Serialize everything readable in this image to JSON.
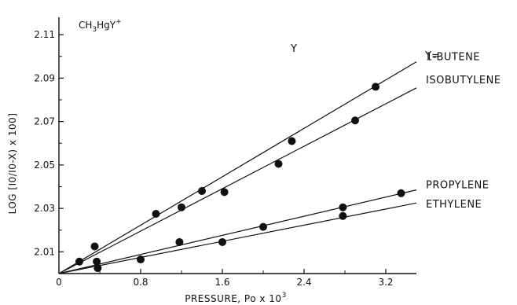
{
  "chart_data": {
    "type": "scatter",
    "title": "",
    "corner_label": "CH3HgY+",
    "corner_label_main": "CH",
    "corner_label_sub": "3",
    "corner_label_mid": "HgY",
    "corner_label_sup": "+",
    "annotation_y": "Y",
    "legend_header": "Y=",
    "xlabel": "PRESSURE, Po x 10",
    "xlabel_exponent": "3",
    "ylabel": "LOG [I0/I0-X) x 100]",
    "xlim": [
      0,
      3.5
    ],
    "ylim": [
      2.0,
      2.118
    ],
    "x_ticks": [
      0,
      0.8,
      1.6,
      2.4,
      3.2
    ],
    "x_tick_labels": [
      "0",
      "0.8",
      "1.6",
      "2.4",
      "3.2"
    ],
    "y_ticks": [
      2.01,
      2.03,
      2.05,
      2.07,
      2.09,
      2.11
    ],
    "y_tick_labels": [
      "2.01",
      "2.03",
      "2.05",
      "2.07",
      "2.09",
      "2.11"
    ],
    "grid": false,
    "series": [
      {
        "name": "1-BUTENE",
        "line": [
          [
            0,
            2.0
          ],
          [
            3.5,
            2.0975
          ]
        ],
        "points": [
          [
            0.2,
            2.0055
          ],
          [
            0.35,
            2.0125
          ],
          [
            0.95,
            2.0275
          ],
          [
            1.2,
            2.0305
          ],
          [
            1.4,
            2.038
          ],
          [
            2.28,
            2.061
          ],
          [
            3.1,
            2.086
          ]
        ]
      },
      {
        "name": "ISOBUTYLENE",
        "line": [
          [
            0,
            2.0
          ],
          [
            3.5,
            2.0855
          ]
        ],
        "points": [
          [
            1.62,
            2.0375
          ],
          [
            2.15,
            2.0505
          ],
          [
            2.9,
            2.0705
          ]
        ]
      },
      {
        "name": "PROPYLENE",
        "line": [
          [
            0,
            2.0
          ],
          [
            3.5,
            2.0385
          ]
        ],
        "points": [
          [
            0.37,
            2.0055
          ],
          [
            1.18,
            2.0145
          ],
          [
            2.0,
            2.0215
          ],
          [
            2.78,
            2.0305
          ],
          [
            3.35,
            2.037
          ]
        ]
      },
      {
        "name": "ETHYLENE",
        "line": [
          [
            0,
            2.0
          ],
          [
            3.5,
            2.0325
          ]
        ],
        "points": [
          [
            0.38,
            2.0025
          ],
          [
            0.8,
            2.0065
          ],
          [
            1.6,
            2.0145
          ],
          [
            2.78,
            2.0265
          ]
        ]
      }
    ]
  }
}
